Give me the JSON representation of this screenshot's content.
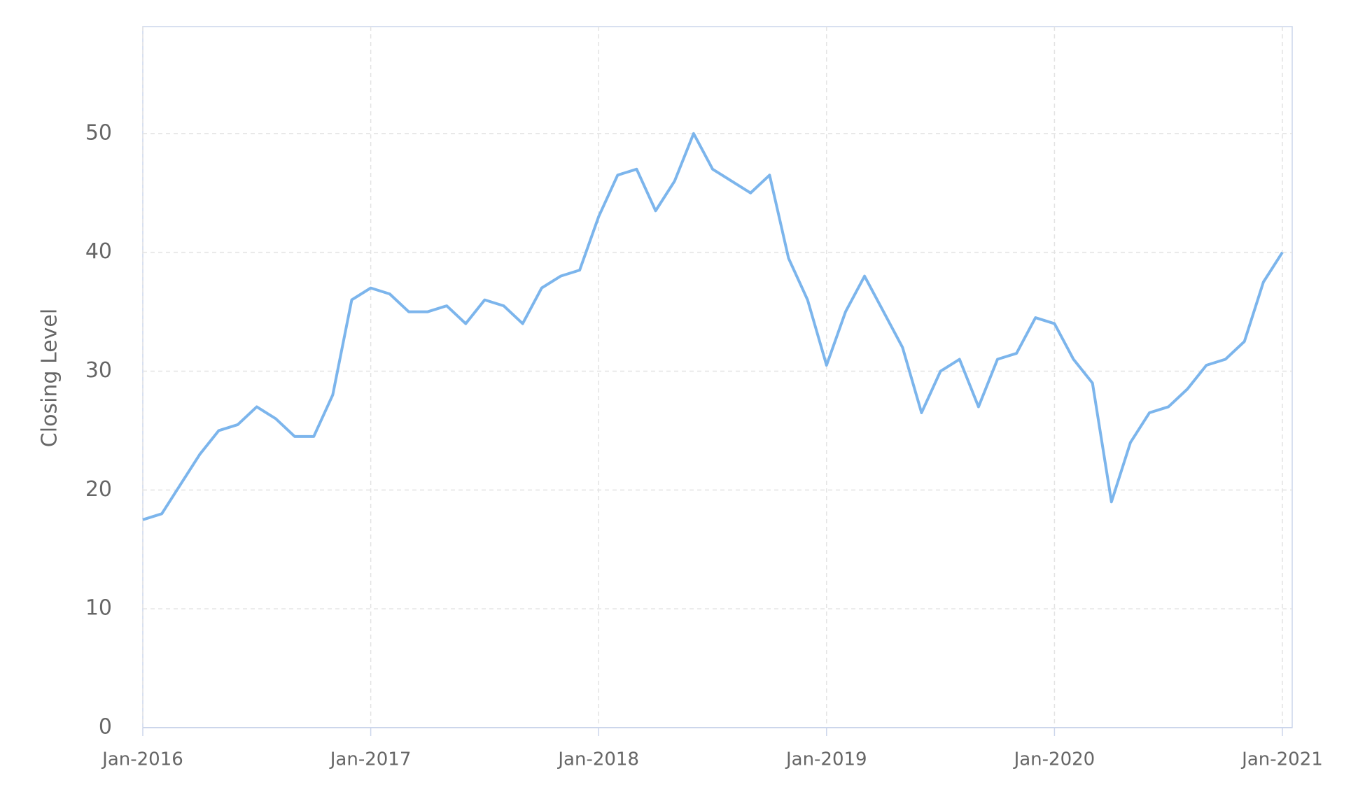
{
  "chart_data": {
    "type": "line",
    "y_label": "Closing Level",
    "x": [
      "2016-01",
      "2016-02",
      "2016-03",
      "2016-04",
      "2016-05",
      "2016-06",
      "2016-07",
      "2016-08",
      "2016-09",
      "2016-10",
      "2016-11",
      "2016-12",
      "2017-01",
      "2017-02",
      "2017-03",
      "2017-04",
      "2017-05",
      "2017-06",
      "2017-07",
      "2017-08",
      "2017-09",
      "2017-10",
      "2017-11",
      "2017-12",
      "2018-01",
      "2018-02",
      "2018-03",
      "2018-04",
      "2018-05",
      "2018-06",
      "2018-07",
      "2018-08",
      "2018-09",
      "2018-10",
      "2018-11",
      "2018-12",
      "2019-01",
      "2019-02",
      "2019-03",
      "2019-04",
      "2019-05",
      "2019-06",
      "2019-07",
      "2019-08",
      "2019-09",
      "2019-10",
      "2019-11",
      "2019-12",
      "2020-01",
      "2020-02",
      "2020-03",
      "2020-04",
      "2020-05",
      "2020-06",
      "2020-07",
      "2020-08",
      "2020-09",
      "2020-10",
      "2020-11",
      "2020-12",
      "2021-01"
    ],
    "series": [
      {
        "name": "Closing Level",
        "color": "#7cb5ec",
        "values": [
          17.5,
          18,
          20.5,
          23,
          25,
          25.5,
          27,
          26,
          24.5,
          24.5,
          28,
          36,
          37,
          36.5,
          35,
          35,
          35.5,
          34,
          36,
          35.5,
          34,
          37,
          38,
          38.5,
          43,
          46.5,
          47,
          43.5,
          46,
          50,
          47,
          46,
          45,
          46.5,
          39.5,
          36,
          30.5,
          35,
          38,
          35,
          32,
          26.5,
          30,
          31,
          27,
          31,
          31.5,
          34.5,
          34,
          31,
          29,
          19,
          24,
          26.5,
          27,
          28.5,
          30.5,
          31,
          32.5,
          37.5,
          40
        ]
      }
    ],
    "xlim": [
      "2016-01",
      "2021-01"
    ],
    "xticks": [
      {
        "value": "2016-01",
        "label": "Jan-2016"
      },
      {
        "value": "2017-01",
        "label": "Jan-2017"
      },
      {
        "value": "2018-01",
        "label": "Jan-2018"
      },
      {
        "value": "2019-01",
        "label": "Jan-2019"
      },
      {
        "value": "2020-01",
        "label": "Jan-2020"
      },
      {
        "value": "2021-01",
        "label": "Jan-2021"
      }
    ],
    "ylim": [
      0,
      59
    ],
    "yticks": [
      0,
      10,
      20,
      30,
      40,
      50
    ],
    "grid": true
  }
}
